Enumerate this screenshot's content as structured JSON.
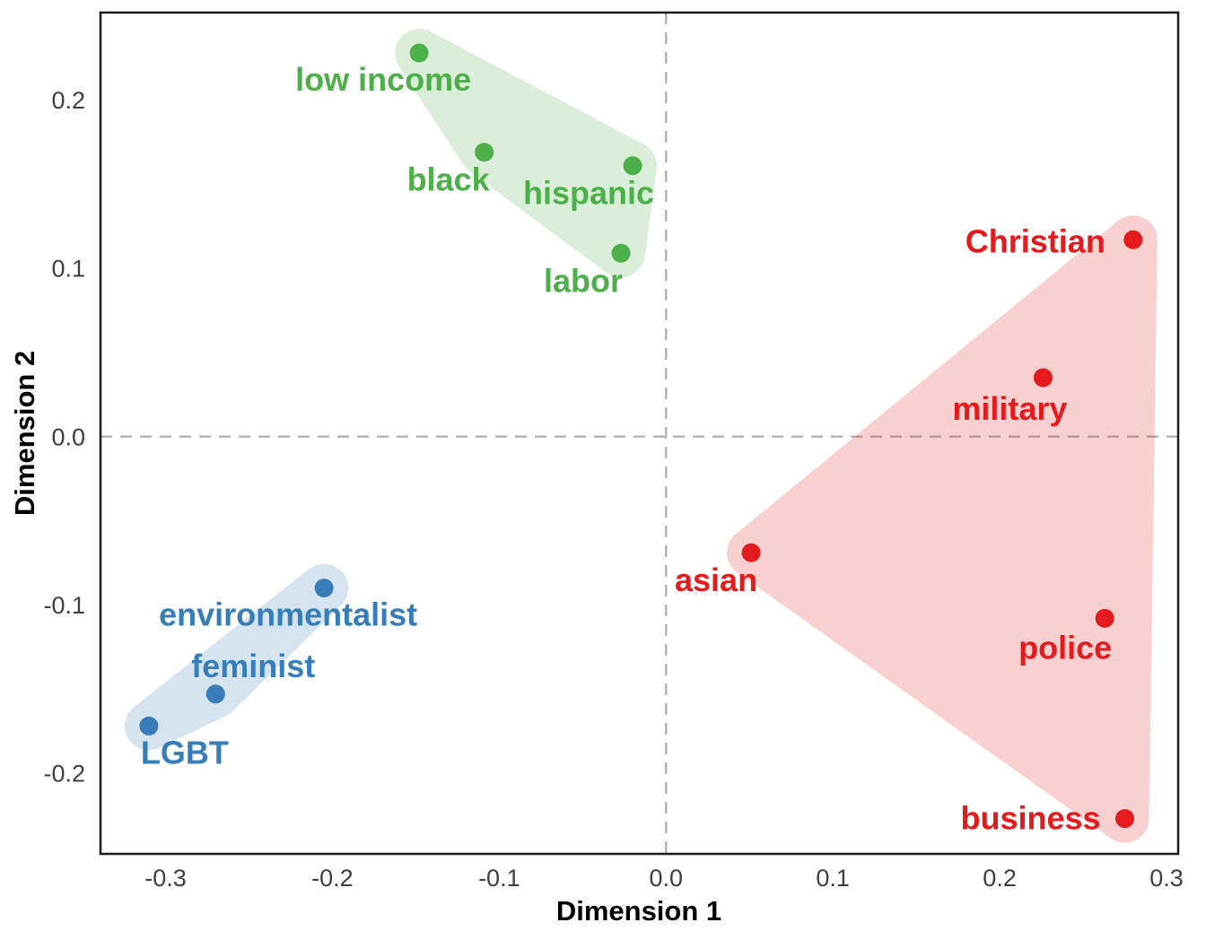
{
  "chart_data": {
    "type": "scatter",
    "title": "",
    "xlabel": "Dimension 1",
    "ylabel": "Dimension 2",
    "xlim": [
      -0.339,
      0.307
    ],
    "ylim": [
      -0.248,
      0.252
    ],
    "x_ticks": [
      "-0.3",
      "-0.2",
      "-0.1",
      "0.0",
      "0.1",
      "0.2",
      "0.3"
    ],
    "y_ticks": [
      "-0.2",
      "-0.1",
      "0.0",
      "0.1",
      "0.2"
    ],
    "grid": "dashed gray lines at x=0 and y=0 only",
    "legend": "none",
    "background": "#ffffff",
    "axis_line_color": "#1a1a1a",
    "zero_line_color": "#b5b5b5",
    "tick_label_color": "#3f3f3f",
    "hull_opacity": 0.2,
    "series": [
      {
        "name": "green-cluster",
        "color": "#4daf4a",
        "hull": [
          "low income",
          "hispanic",
          "labor",
          "black"
        ],
        "points": [
          {
            "label": "low income",
            "x": -0.148,
            "y": 0.228,
            "label_dx": -40,
            "label_dy": 30
          },
          {
            "label": "black",
            "x": -0.109,
            "y": 0.169,
            "label_dx": -40,
            "label_dy": 31
          },
          {
            "label": "hispanic",
            "x": -0.02,
            "y": 0.161,
            "label_dx": -49,
            "label_dy": 31
          },
          {
            "label": "labor",
            "x": -0.027,
            "y": 0.109,
            "label_dx": -42,
            "label_dy": 31
          }
        ]
      },
      {
        "name": "red-cluster",
        "color": "#e41a1c",
        "hull": [
          "Christian",
          "business",
          "asian"
        ],
        "points": [
          {
            "label": "Christian",
            "x": 0.28,
            "y": 0.117,
            "label_dx": -109,
            "label_dy": 2
          },
          {
            "label": "military",
            "x": 0.226,
            "y": 0.035,
            "label_dx": -37,
            "label_dy": 35
          },
          {
            "label": "asian",
            "x": 0.051,
            "y": -0.069,
            "label_dx": -39,
            "label_dy": 31
          },
          {
            "label": "police",
            "x": 0.263,
            "y": -0.108,
            "label_dx": -44,
            "label_dy": 33
          },
          {
            "label": "business",
            "x": 0.275,
            "y": -0.227,
            "label_dx": -105,
            "label_dy": 0
          }
        ]
      },
      {
        "name": "blue-cluster",
        "color": "#377eb8",
        "hull": [
          "environmentalist",
          "feminist",
          "LGBT"
        ],
        "points": [
          {
            "label": "environmentalist",
            "x": -0.205,
            "y": -0.09,
            "label_dx": -40,
            "label_dy": 30
          },
          {
            "label": "feminist",
            "x": -0.27,
            "y": -0.153,
            "label_dx": 42,
            "label_dy": -31
          },
          {
            "label": "LGBT",
            "x": -0.31,
            "y": -0.172,
            "label_dx": 40,
            "label_dy": 30
          }
        ]
      }
    ]
  }
}
